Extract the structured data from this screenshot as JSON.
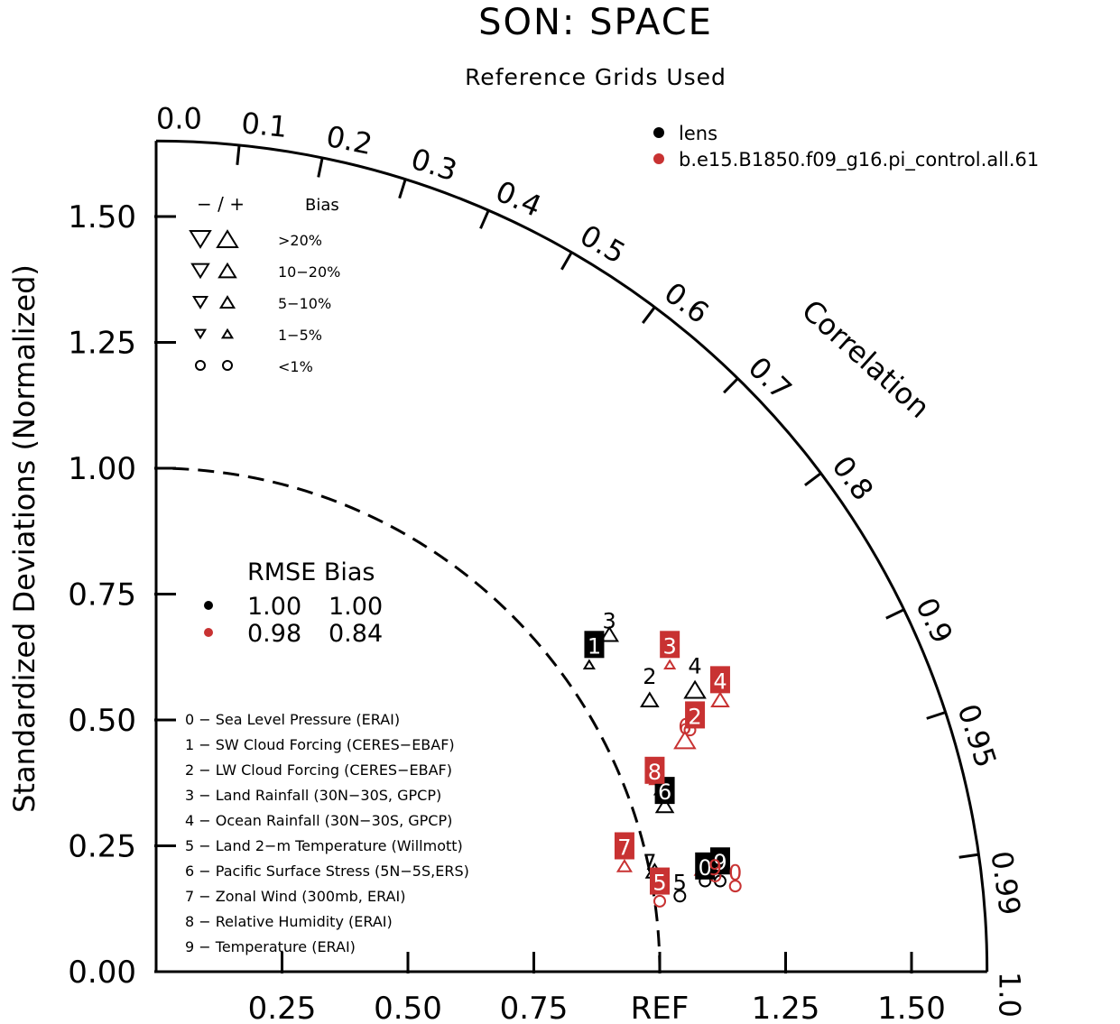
{
  "header": {
    "title": "SON: SPACE",
    "subtitle": "Reference Grids Used"
  },
  "legend_cases": [
    {
      "label": "lens",
      "color": "#000000"
    },
    {
      "label": "b.e15.B1850.f09_g16.pi_control.all.61",
      "color": "#c83232"
    }
  ],
  "bias_key": {
    "header_sign": "−  /  +",
    "header_label": "Bias",
    "rows": [
      {
        "label": ">20%",
        "size": 1.0
      },
      {
        "label": "10−20%",
        "size": 0.82
      },
      {
        "label": "5−10%",
        "size": 0.66
      },
      {
        "label": "1−5%",
        "size": 0.48
      },
      {
        "label": "<1%",
        "size": 0.0
      }
    ]
  },
  "rmse_table": {
    "header": "RMSE Bias",
    "rows": [
      {
        "color": "#000000",
        "rmse": "1.00",
        "bias": "1.00"
      },
      {
        "color": "#c83232",
        "rmse": "0.98",
        "bias": "0.84"
      }
    ]
  },
  "variable_list": [
    "0 − Sea Level Pressure (ERAI)",
    "1 − SW Cloud Forcing (CERES−EBAF)",
    "2 − LW Cloud Forcing (CERES−EBAF)",
    "3 − Land Rainfall (30N−30S, GPCP)",
    "4 − Ocean Rainfall (30N−30S, GPCP)",
    "5 − Land 2−m Temperature (Willmott)",
    "6 − Pacific Surface Stress (5N−5S,ERS)",
    "7 − Zonal Wind (300mb, ERAI)",
    "8 − Relative Humidity (ERAI)",
    "9 − Temperature (ERAI)"
  ],
  "chart_data": {
    "type": "scatter",
    "title": "SON: SPACE",
    "subtitle": "Reference Grids Used",
    "ylabel": "Standardized Deviations (Normalized)",
    "corr_label": "Correlation",
    "xlim": [
      0,
      1.65
    ],
    "ylim": [
      0,
      1.65
    ],
    "y_ticks": [
      "0.00",
      "0.25",
      "0.50",
      "0.75",
      "1.00",
      "1.25",
      "1.50"
    ],
    "x_ticks": [
      "0.25",
      "0.50",
      "0.75",
      "REF",
      "1.25",
      "1.50"
    ],
    "x_tick_values": [
      0.25,
      0.5,
      0.75,
      1.0,
      1.25,
      1.5
    ],
    "corr_ticks": [
      {
        "r": 0.0,
        "label": "0.0"
      },
      {
        "r": 0.1,
        "label": "0.1"
      },
      {
        "r": 0.2,
        "label": "0.2"
      },
      {
        "r": 0.3,
        "label": "0.3"
      },
      {
        "r": 0.4,
        "label": "0.4"
      },
      {
        "r": 0.5,
        "label": "0.5"
      },
      {
        "r": 0.6,
        "label": "0.6"
      },
      {
        "r": 0.7,
        "label": "0.7"
      },
      {
        "r": 0.8,
        "label": "0.8"
      },
      {
        "r": 0.9,
        "label": "0.9"
      },
      {
        "r": 0.95,
        "label": "0.95"
      },
      {
        "r": 0.99,
        "label": "0.99"
      },
      {
        "r": 1.0,
        "label": "1.0"
      }
    ],
    "reference_std": 1.0,
    "series": [
      {
        "name": "lens",
        "color": "#000000",
        "points": [
          {
            "id": "0",
            "x": 1.09,
            "y": 0.18,
            "bias": "lt1"
          },
          {
            "id": "1",
            "x": 0.86,
            "y": 0.61,
            "bias": "pos_1_5"
          },
          {
            "id": "2",
            "x": 0.98,
            "y": 0.54,
            "bias": "pos_10_20"
          },
          {
            "id": "3",
            "x": 0.9,
            "y": 0.67,
            "bias": "pos_10_20"
          },
          {
            "id": "4",
            "x": 1.07,
            "y": 0.56,
            "bias": "pos_gt20"
          },
          {
            "id": "5",
            "x": 1.04,
            "y": 0.15,
            "bias": "lt1"
          },
          {
            "id": "6",
            "x": 1.01,
            "y": 0.33,
            "bias": "pos_10_20"
          },
          {
            "id": "7",
            "x": 0.99,
            "y": 0.2,
            "bias": "pos_10_20"
          },
          {
            "id": "8",
            "x": 1.0,
            "y": 0.36,
            "bias": "pos_1_5"
          },
          {
            "id": "9",
            "x": 1.12,
            "y": 0.18,
            "bias": "lt1"
          }
        ]
      },
      {
        "name": "b.e15.B1850.f09_g16.pi_control.all.61",
        "color": "#c83232",
        "points": [
          {
            "id": "0",
            "x": 1.15,
            "y": 0.17,
            "bias": "lt1"
          },
          {
            "id": "1",
            "x": 1.08,
            "y": 0.2,
            "bias": "pos_1_5"
          },
          {
            "id": "2",
            "x": 1.06,
            "y": 0.48,
            "bias": "lt1"
          },
          {
            "id": "3",
            "x": 1.02,
            "y": 0.61,
            "bias": "pos_1_5"
          },
          {
            "id": "4",
            "x": 1.12,
            "y": 0.54,
            "bias": "pos_10_20"
          },
          {
            "id": "5",
            "x": 1.0,
            "y": 0.14,
            "bias": "lt1"
          },
          {
            "id": "6",
            "x": 1.05,
            "y": 0.46,
            "bias": "pos_gt20"
          },
          {
            "id": "7",
            "x": 0.93,
            "y": 0.21,
            "bias": "pos_5_10"
          },
          {
            "id": "8",
            "x": 0.99,
            "y": 0.38,
            "bias": "pos_1_5"
          },
          {
            "id": "9",
            "x": 1.11,
            "y": 0.19,
            "bias": "lt1"
          }
        ]
      }
    ],
    "marker_labels": [
      {
        "id": "0",
        "series": 0,
        "x": 1.09,
        "y": 0.21,
        "boxed": true
      },
      {
        "id": "1",
        "series": 0,
        "x": 0.87,
        "y": 0.65,
        "boxed": true
      },
      {
        "id": "2",
        "series": 0,
        "x": 0.98,
        "y": 0.59,
        "boxed": false
      },
      {
        "id": "3",
        "series": 0,
        "x": 0.9,
        "y": 0.7,
        "boxed": false
      },
      {
        "id": "4",
        "series": 0,
        "x": 1.07,
        "y": 0.61,
        "boxed": false
      },
      {
        "id": "5",
        "series": 0,
        "x": 1.04,
        "y": 0.18,
        "boxed": false
      },
      {
        "id": "6",
        "series": 0,
        "x": 1.01,
        "y": 0.36,
        "boxed": true
      },
      {
        "id": "7",
        "series": 0,
        "x": 0.98,
        "y": 0.22,
        "boxed": false
      },
      {
        "id": "9",
        "series": 0,
        "x": 1.12,
        "y": 0.22,
        "boxed": true
      },
      {
        "id": "0",
        "series": 1,
        "x": 1.15,
        "y": 0.2,
        "boxed": false
      },
      {
        "id": "2",
        "series": 1,
        "x": 1.07,
        "y": 0.51,
        "boxed": true
      },
      {
        "id": "3",
        "series": 1,
        "x": 1.02,
        "y": 0.65,
        "boxed": true
      },
      {
        "id": "4",
        "series": 1,
        "x": 1.12,
        "y": 0.58,
        "boxed": true
      },
      {
        "id": "5",
        "series": 1,
        "x": 1.0,
        "y": 0.18,
        "boxed": true
      },
      {
        "id": "6",
        "series": 1,
        "x": 1.05,
        "y": 0.49,
        "boxed": false
      },
      {
        "id": "7",
        "series": 1,
        "x": 0.93,
        "y": 0.25,
        "boxed": true
      },
      {
        "id": "8",
        "series": 1,
        "x": 0.99,
        "y": 0.4,
        "boxed": true
      },
      {
        "id": "9",
        "series": 1,
        "x": 1.11,
        "y": 0.21,
        "boxed": false
      }
    ]
  }
}
